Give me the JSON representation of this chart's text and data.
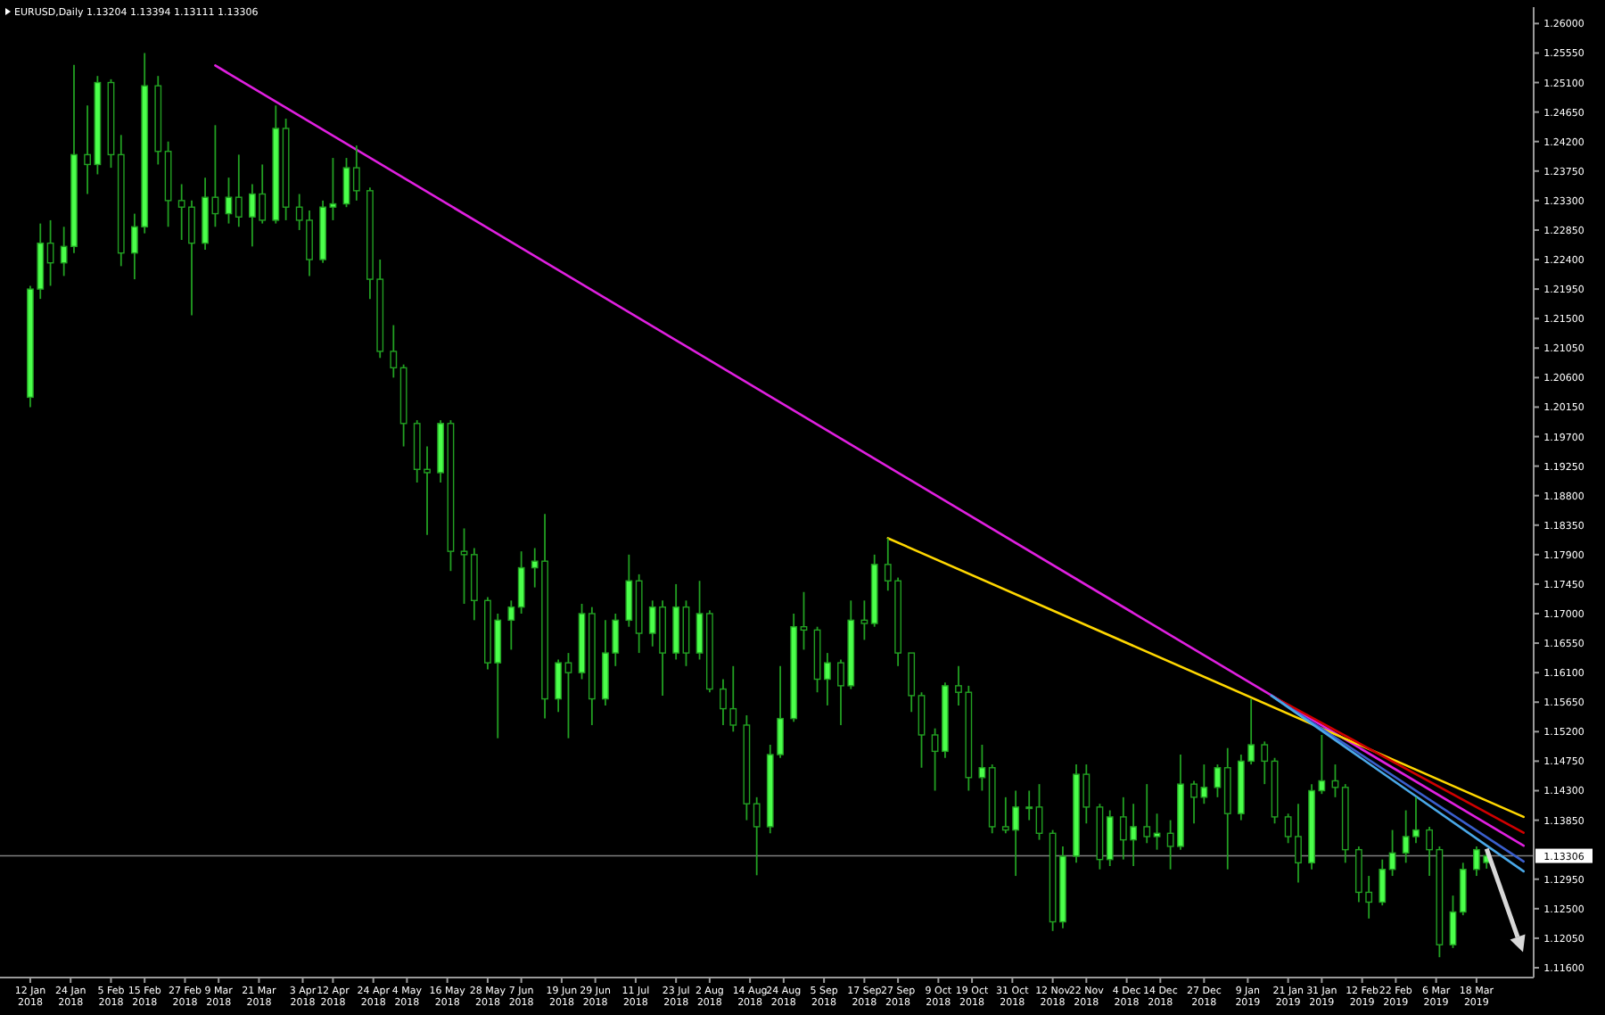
{
  "chart_data": {
    "type": "candlestick",
    "title": "EURUSD,Daily 1.13204 1.13394 1.13111 1.13306",
    "color": "#22a022",
    "x": [
      "2018-01-12",
      "2018-01-15",
      "2018-01-18",
      "2018-01-22",
      "2018-01-25",
      "2018-01-29",
      "2018-02-01",
      "2018-02-05",
      "2018-02-08",
      "2018-02-12",
      "2018-02-15",
      "2018-02-19",
      "2018-02-22",
      "2018-02-26",
      "2018-03-01",
      "2018-03-05",
      "2018-03-08",
      "2018-03-12",
      "2018-03-15",
      "2018-03-19",
      "2018-03-22",
      "2018-03-26",
      "2018-03-29",
      "2018-04-02",
      "2018-04-05",
      "2018-04-09",
      "2018-04-12",
      "2018-04-16",
      "2018-04-19",
      "2018-04-23",
      "2018-04-26",
      "2018-04-30",
      "2018-05-03",
      "2018-05-07",
      "2018-05-10",
      "2018-05-14",
      "2018-05-17",
      "2018-05-21",
      "2018-05-24",
      "2018-05-28",
      "2018-05-31",
      "2018-06-04",
      "2018-06-07",
      "2018-06-11",
      "2018-06-14",
      "2018-06-18",
      "2018-06-21",
      "2018-06-25",
      "2018-06-28",
      "2018-07-02",
      "2018-07-05",
      "2018-07-09",
      "2018-07-12",
      "2018-07-16",
      "2018-07-19",
      "2018-07-23",
      "2018-07-26",
      "2018-07-30",
      "2018-08-02",
      "2018-08-06",
      "2018-08-09",
      "2018-08-13",
      "2018-08-16",
      "2018-08-20",
      "2018-08-23",
      "2018-08-27",
      "2018-08-30",
      "2018-09-03",
      "2018-09-06",
      "2018-09-10",
      "2018-09-13",
      "2018-09-17",
      "2018-09-20",
      "2018-09-24",
      "2018-09-27",
      "2018-10-01",
      "2018-10-04",
      "2018-10-08",
      "2018-10-11",
      "2018-10-15",
      "2018-10-18",
      "2018-10-22",
      "2018-10-25",
      "2018-10-29",
      "2018-11-01",
      "2018-11-05",
      "2018-11-08",
      "2018-11-12",
      "2018-11-15",
      "2018-11-19",
      "2018-11-22",
      "2018-11-26",
      "2018-11-29",
      "2018-12-03",
      "2018-12-06",
      "2018-12-10",
      "2018-12-13",
      "2018-12-17",
      "2018-12-20",
      "2018-12-24",
      "2018-12-27",
      "2018-12-31",
      "2019-01-03",
      "2019-01-07",
      "2019-01-10",
      "2019-01-14",
      "2019-01-17",
      "2019-01-21",
      "2019-01-24",
      "2019-01-28",
      "2019-01-31",
      "2019-02-04",
      "2019-02-07",
      "2019-02-11",
      "2019-02-14",
      "2019-02-18",
      "2019-02-21",
      "2019-02-25",
      "2019-02-28",
      "2019-03-04",
      "2019-03-07",
      "2019-03-11",
      "2019-03-14",
      "2019-03-18",
      "2019-03-21"
    ],
    "ohlc": [
      [
        1.203,
        1.22,
        1.2015,
        1.2195
      ],
      [
        1.2195,
        1.2295,
        1.218,
        1.2265
      ],
      [
        1.2265,
        1.23,
        1.22,
        1.2235
      ],
      [
        1.2235,
        1.229,
        1.2215,
        1.226
      ],
      [
        1.226,
        1.2537,
        1.225,
        1.24
      ],
      [
        1.24,
        1.2475,
        1.234,
        1.2385
      ],
      [
        1.2385,
        1.252,
        1.237,
        1.251
      ],
      [
        1.251,
        1.2515,
        1.238,
        1.24
      ],
      [
        1.24,
        1.243,
        1.223,
        1.225
      ],
      [
        1.225,
        1.231,
        1.221,
        1.229
      ],
      [
        1.229,
        1.2555,
        1.228,
        1.2505
      ],
      [
        1.2505,
        1.252,
        1.2385,
        1.2405
      ],
      [
        1.2405,
        1.242,
        1.229,
        1.233
      ],
      [
        1.233,
        1.2355,
        1.227,
        1.232
      ],
      [
        1.232,
        1.233,
        1.2155,
        1.2265
      ],
      [
        1.2265,
        1.2365,
        1.2255,
        1.2335
      ],
      [
        1.2335,
        1.2445,
        1.229,
        1.231
      ],
      [
        1.231,
        1.2365,
        1.2295,
        1.2335
      ],
      [
        1.2335,
        1.24,
        1.229,
        1.2305
      ],
      [
        1.2305,
        1.2355,
        1.226,
        1.234
      ],
      [
        1.234,
        1.2385,
        1.2295,
        1.23
      ],
      [
        1.23,
        1.2475,
        1.2295,
        1.244
      ],
      [
        1.244,
        1.2455,
        1.23,
        1.232
      ],
      [
        1.232,
        1.234,
        1.2285,
        1.23
      ],
      [
        1.23,
        1.2315,
        1.2215,
        1.224
      ],
      [
        1.224,
        1.233,
        1.2235,
        1.232
      ],
      [
        1.232,
        1.2395,
        1.23,
        1.2325
      ],
      [
        1.2325,
        1.2395,
        1.232,
        1.238
      ],
      [
        1.238,
        1.2414,
        1.233,
        1.2345
      ],
      [
        1.2345,
        1.235,
        1.218,
        1.221
      ],
      [
        1.221,
        1.224,
        1.209,
        1.21
      ],
      [
        1.21,
        1.214,
        1.206,
        1.2075
      ],
      [
        1.2075,
        1.208,
        1.1955,
        1.199
      ],
      [
        1.199,
        1.1995,
        1.19,
        1.192
      ],
      [
        1.192,
        1.1955,
        1.182,
        1.1915
      ],
      [
        1.1915,
        1.1995,
        1.19,
        1.199
      ],
      [
        1.199,
        1.1995,
        1.1765,
        1.1795
      ],
      [
        1.1795,
        1.183,
        1.1715,
        1.179
      ],
      [
        1.179,
        1.18,
        1.169,
        1.172
      ],
      [
        1.172,
        1.1725,
        1.1615,
        1.1625
      ],
      [
        1.1625,
        1.17,
        1.151,
        1.169
      ],
      [
        1.169,
        1.172,
        1.1645,
        1.171
      ],
      [
        1.171,
        1.1795,
        1.17,
        1.177
      ],
      [
        1.177,
        1.18,
        1.174,
        1.178
      ],
      [
        1.178,
        1.1852,
        1.154,
        1.157
      ],
      [
        1.157,
        1.163,
        1.155,
        1.1625
      ],
      [
        1.1625,
        1.164,
        1.151,
        1.161
      ],
      [
        1.161,
        1.1715,
        1.16,
        1.17
      ],
      [
        1.17,
        1.171,
        1.153,
        1.157
      ],
      [
        1.157,
        1.169,
        1.156,
        1.164
      ],
      [
        1.164,
        1.17,
        1.162,
        1.169
      ],
      [
        1.169,
        1.179,
        1.168,
        1.175
      ],
      [
        1.175,
        1.176,
        1.164,
        1.167
      ],
      [
        1.167,
        1.172,
        1.165,
        1.171
      ],
      [
        1.171,
        1.172,
        1.1575,
        1.164
      ],
      [
        1.164,
        1.1745,
        1.163,
        1.171
      ],
      [
        1.171,
        1.172,
        1.162,
        1.164
      ],
      [
        1.164,
        1.175,
        1.163,
        1.17
      ],
      [
        1.17,
        1.1705,
        1.158,
        1.1585
      ],
      [
        1.1585,
        1.16,
        1.153,
        1.1555
      ],
      [
        1.1555,
        1.162,
        1.152,
        1.153
      ],
      [
        1.153,
        1.1545,
        1.1385,
        1.141
      ],
      [
        1.141,
        1.142,
        1.1301,
        1.1375
      ],
      [
        1.1375,
        1.15,
        1.1365,
        1.1485
      ],
      [
        1.1485,
        1.162,
        1.148,
        1.154
      ],
      [
        1.154,
        1.17,
        1.1535,
        1.168
      ],
      [
        1.168,
        1.1733,
        1.1645,
        1.1675
      ],
      [
        1.1675,
        1.168,
        1.158,
        1.16
      ],
      [
        1.16,
        1.164,
        1.156,
        1.1625
      ],
      [
        1.1625,
        1.163,
        1.153,
        1.159
      ],
      [
        1.159,
        1.172,
        1.1585,
        1.169
      ],
      [
        1.169,
        1.172,
        1.166,
        1.1685
      ],
      [
        1.1685,
        1.179,
        1.168,
        1.1775
      ],
      [
        1.1775,
        1.1815,
        1.1735,
        1.175
      ],
      [
        1.175,
        1.1755,
        1.162,
        1.164
      ],
      [
        1.164,
        1.164,
        1.155,
        1.1575
      ],
      [
        1.1575,
        1.158,
        1.1465,
        1.1515
      ],
      [
        1.1515,
        1.1525,
        1.143,
        1.149
      ],
      [
        1.149,
        1.1595,
        1.148,
        1.159
      ],
      [
        1.159,
        1.162,
        1.156,
        1.158
      ],
      [
        1.158,
        1.159,
        1.143,
        1.145
      ],
      [
        1.145,
        1.15,
        1.143,
        1.1465
      ],
      [
        1.1465,
        1.147,
        1.1365,
        1.1375
      ],
      [
        1.1375,
        1.142,
        1.1365,
        1.137
      ],
      [
        1.137,
        1.143,
        1.13,
        1.1405
      ],
      [
        1.1405,
        1.143,
        1.1385,
        1.1405
      ],
      [
        1.1405,
        1.144,
        1.1355,
        1.1365
      ],
      [
        1.1365,
        1.137,
        1.1216,
        1.123
      ],
      [
        1.123,
        1.1345,
        1.122,
        1.133
      ],
      [
        1.133,
        1.147,
        1.132,
        1.1455
      ],
      [
        1.1455,
        1.147,
        1.138,
        1.1405
      ],
      [
        1.1405,
        1.141,
        1.131,
        1.1325
      ],
      [
        1.1325,
        1.14,
        1.1315,
        1.139
      ],
      [
        1.139,
        1.142,
        1.1325,
        1.1355
      ],
      [
        1.1355,
        1.141,
        1.1315,
        1.1375
      ],
      [
        1.1375,
        1.144,
        1.135,
        1.136
      ],
      [
        1.136,
        1.1395,
        1.134,
        1.1365
      ],
      [
        1.1365,
        1.1385,
        1.131,
        1.1345
      ],
      [
        1.1345,
        1.1485,
        1.134,
        1.144
      ],
      [
        1.144,
        1.1445,
        1.138,
        1.142
      ],
      [
        1.142,
        1.147,
        1.141,
        1.1435
      ],
      [
        1.1435,
        1.147,
        1.142,
        1.1465
      ],
      [
        1.1465,
        1.1495,
        1.131,
        1.1395
      ],
      [
        1.1395,
        1.1485,
        1.1385,
        1.1475
      ],
      [
        1.1475,
        1.157,
        1.147,
        1.15
      ],
      [
        1.15,
        1.1505,
        1.144,
        1.1475
      ],
      [
        1.1475,
        1.148,
        1.138,
        1.139
      ],
      [
        1.139,
        1.1395,
        1.135,
        1.136
      ],
      [
        1.136,
        1.141,
        1.129,
        1.132
      ],
      [
        1.132,
        1.144,
        1.131,
        1.143
      ],
      [
        1.143,
        1.1515,
        1.1425,
        1.1445
      ],
      [
        1.1445,
        1.147,
        1.142,
        1.1435
      ],
      [
        1.1435,
        1.144,
        1.132,
        1.134
      ],
      [
        1.134,
        1.1345,
        1.126,
        1.1275
      ],
      [
        1.1275,
        1.13,
        1.1235,
        1.126
      ],
      [
        1.126,
        1.1325,
        1.1255,
        1.131
      ],
      [
        1.131,
        1.137,
        1.13,
        1.1335
      ],
      [
        1.1335,
        1.14,
        1.132,
        1.136
      ],
      [
        1.136,
        1.142,
        1.135,
        1.137
      ],
      [
        1.137,
        1.1375,
        1.13,
        1.134
      ],
      [
        1.134,
        1.1345,
        1.1176,
        1.1195
      ],
      [
        1.1195,
        1.127,
        1.119,
        1.1245
      ],
      [
        1.1245,
        1.132,
        1.124,
        1.131
      ],
      [
        1.131,
        1.1345,
        1.13,
        1.134
      ],
      [
        1.13204,
        1.13394,
        1.13111,
        1.13306
      ]
    ],
    "series": [
      {
        "type": "line",
        "color": "#e020e0",
        "x": [
          "2018-03-08",
          "2019-04-01"
        ],
        "values": [
          1.2536,
          1.1346
        ]
      },
      {
        "type": "line",
        "color": "#ffd700",
        "x": [
          "2018-09-24",
          "2019-04-01"
        ],
        "values": [
          1.1815,
          1.139
        ]
      },
      {
        "type": "line",
        "color": "#d00000",
        "x": [
          "2019-01-16",
          "2019-04-01"
        ],
        "values": [
          1.1575,
          1.1366
        ]
      },
      {
        "type": "line",
        "color": "#3a5fcd",
        "x": [
          "2019-01-16",
          "2019-04-01"
        ],
        "values": [
          1.1575,
          1.1322
        ]
      },
      {
        "type": "line",
        "color": "#4aa8e8",
        "x": [
          "2019-01-16",
          "2019-04-01"
        ],
        "values": [
          1.1575,
          1.1307
        ]
      }
    ],
    "ref_lines": [
      {
        "axis": "y",
        "value": 1.13306,
        "label": "1.13306",
        "color": "#808080"
      }
    ],
    "xlim": [
      "2018-01-03",
      "2019-04-04"
    ],
    "ylim": [
      1.1145,
      1.2625
    ],
    "xticks": [
      {
        "value": "2018-01-12",
        "label": "12 Jan 2018"
      },
      {
        "value": "2018-01-24",
        "label": "24 Jan 2018"
      },
      {
        "value": "2018-02-05",
        "label": "5 Feb 2018"
      },
      {
        "value": "2018-02-15",
        "label": "15 Feb 2018"
      },
      {
        "value": "2018-02-27",
        "label": "27 Feb 2018"
      },
      {
        "value": "2018-03-09",
        "label": "9 Mar 2018"
      },
      {
        "value": "2018-03-21",
        "label": "21 Mar 2018"
      },
      {
        "value": "2018-04-03",
        "label": "3 Apr 2018"
      },
      {
        "value": "2018-04-12",
        "label": "12 Apr 2018"
      },
      {
        "value": "2018-04-24",
        "label": "24 Apr 2018"
      },
      {
        "value": "2018-05-04",
        "label": "4 May 2018"
      },
      {
        "value": "2018-05-16",
        "label": "16 May 2018"
      },
      {
        "value": "2018-05-28",
        "label": "28 May 2018"
      },
      {
        "value": "2018-06-07",
        "label": "7 Jun 2018"
      },
      {
        "value": "2018-06-19",
        "label": "19 Jun 2018"
      },
      {
        "value": "2018-06-29",
        "label": "29 Jun 2018"
      },
      {
        "value": "2018-07-11",
        "label": "11 Jul 2018"
      },
      {
        "value": "2018-07-23",
        "label": "23 Jul 2018"
      },
      {
        "value": "2018-08-02",
        "label": "2 Aug 2018"
      },
      {
        "value": "2018-08-14",
        "label": "14 Aug 2018"
      },
      {
        "value": "2018-08-24",
        "label": "24 Aug 2018"
      },
      {
        "value": "2018-09-05",
        "label": "5 Sep 2018"
      },
      {
        "value": "2018-09-17",
        "label": "17 Sep 2018"
      },
      {
        "value": "2018-09-27",
        "label": "27 Sep 2018"
      },
      {
        "value": "2018-10-09",
        "label": "9 Oct 2018"
      },
      {
        "value": "2018-10-19",
        "label": "19 Oct 2018"
      },
      {
        "value": "2018-10-31",
        "label": "31 Oct 2018"
      },
      {
        "value": "2018-11-12",
        "label": "12 Nov 2018"
      },
      {
        "value": "2018-11-22",
        "label": "22 Nov 2018"
      },
      {
        "value": "2018-12-04",
        "label": "4 Dec 2018"
      },
      {
        "value": "2018-12-14",
        "label": "14 Dec 2018"
      },
      {
        "value": "2018-12-27",
        "label": "27 Dec 2018"
      },
      {
        "value": "2019-01-09",
        "label": "9 Jan 2019"
      },
      {
        "value": "2019-01-21",
        "label": "21 Jan 2019"
      },
      {
        "value": "2019-01-31",
        "label": "31 Jan 2019"
      },
      {
        "value": "2019-02-12",
        "label": "12 Feb 2019"
      },
      {
        "value": "2019-02-22",
        "label": "22 Feb 2019"
      },
      {
        "value": "2019-03-06",
        "label": "6 Mar 2019"
      },
      {
        "value": "2019-03-18",
        "label": "18 Mar 2019"
      }
    ],
    "yticks": [
      {
        "value": 1.116,
        "label": "1.11600"
      },
      {
        "value": 1.1205,
        "label": "1.12050"
      },
      {
        "value": 1.125,
        "label": "1.12500"
      },
      {
        "value": 1.1295,
        "label": "1.12950"
      },
      {
        "value": 1.1385,
        "label": "1.13850"
      },
      {
        "value": 1.143,
        "label": "1.14300"
      },
      {
        "value": 1.1475,
        "label": "1.14750"
      },
      {
        "value": 1.152,
        "label": "1.15200"
      },
      {
        "value": 1.1565,
        "label": "1.15650"
      },
      {
        "value": 1.161,
        "label": "1.16100"
      },
      {
        "value": 1.1655,
        "label": "1.16550"
      },
      {
        "value": 1.17,
        "label": "1.17000"
      },
      {
        "value": 1.1745,
        "label": "1.17450"
      },
      {
        "value": 1.179,
        "label": "1.17900"
      },
      {
        "value": 1.1835,
        "label": "1.18350"
      },
      {
        "value": 1.188,
        "label": "1.18800"
      },
      {
        "value": 1.1925,
        "label": "1.19250"
      },
      {
        "value": 1.197,
        "label": "1.19700"
      },
      {
        "value": 1.2015,
        "label": "1.20150"
      },
      {
        "value": 1.206,
        "label": "1.20600"
      },
      {
        "value": 1.2105,
        "label": "1.21050"
      },
      {
        "value": 1.215,
        "label": "1.21500"
      },
      {
        "value": 1.2195,
        "label": "1.21950"
      },
      {
        "value": 1.224,
        "label": "1.22400"
      },
      {
        "value": 1.2285,
        "label": "1.22850"
      },
      {
        "value": 1.233,
        "label": "1.23300"
      },
      {
        "value": 1.2375,
        "label": "1.23750"
      },
      {
        "value": 1.242,
        "label": "1.24200"
      },
      {
        "value": 1.2465,
        "label": "1.24650"
      },
      {
        "value": 1.251,
        "label": "1.25100"
      },
      {
        "value": 1.2555,
        "label": "1.25550"
      },
      {
        "value": 1.26,
        "label": "1.26000"
      }
    ]
  }
}
